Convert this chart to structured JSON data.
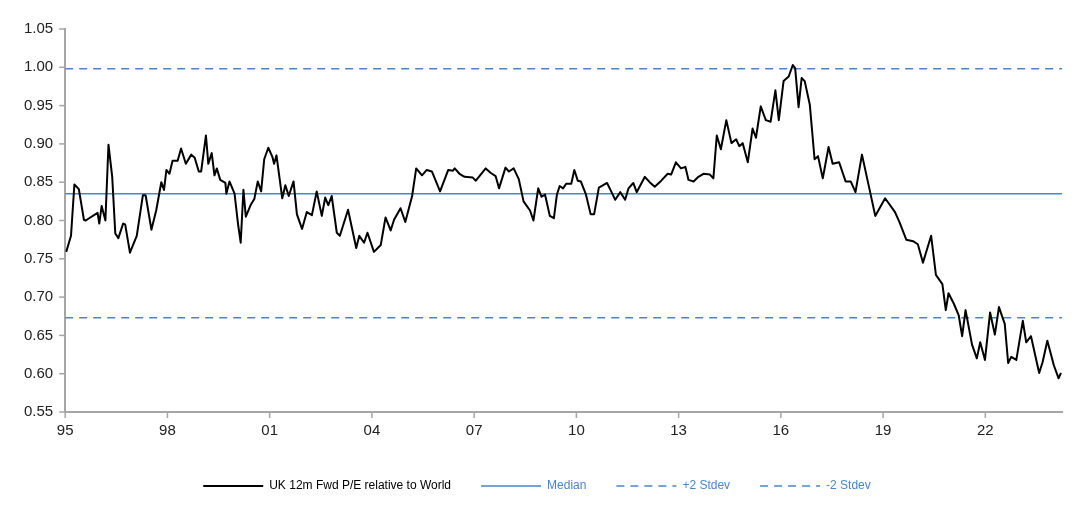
{
  "chart_data": {
    "type": "line",
    "legend": "bottom",
    "grid": false,
    "marker": "none",
    "line_style": "solid",
    "xlim": [
      1995,
      2024.25
    ],
    "xticks": [
      {
        "value": 1995,
        "label": "95"
      },
      {
        "value": 1998,
        "label": "98"
      },
      {
        "value": 2001,
        "label": "01"
      },
      {
        "value": 2004,
        "label": "04"
      },
      {
        "value": 2007,
        "label": "07"
      },
      {
        "value": 2010,
        "label": "10"
      },
      {
        "value": 2013,
        "label": "13"
      },
      {
        "value": 2016,
        "label": "16"
      },
      {
        "value": 2019,
        "label": "19"
      },
      {
        "value": 2022,
        "label": "22"
      }
    ],
    "ylim": [
      0.55,
      1.05
    ],
    "yticks": [
      0.55,
      {
        "value": 0.6,
        "label": "0.60"
      },
      0.65,
      {
        "value": 0.7,
        "label": "0.70"
      },
      0.75,
      {
        "value": 0.8,
        "label": "0.80"
      },
      0.85,
      {
        "value": 0.9,
        "label": "0.90"
      },
      0.95,
      {
        "value": 1,
        "label": "1.00"
      },
      1.05
    ],
    "series": [
      {
        "name": "UK 12m Fwd P/E relative to World",
        "color": "#000000",
        "x": [
          1995.03,
          1995.17,
          1995.27,
          1995.4,
          1995.55,
          1995.6,
          1995.95,
          1996.0,
          1996.07,
          1996.18,
          1996.27,
          1996.38,
          1996.47,
          1996.56,
          1996.7,
          1996.76,
          1996.9,
          1997.1,
          1997.28,
          1997.36,
          1997.53,
          1997.67,
          1997.82,
          1997.9,
          1997.97,
          1998.06,
          1998.15,
          1998.3,
          1998.4,
          1998.54,
          1998.7,
          1998.8,
          1998.92,
          1998.99,
          1999.13,
          1999.2,
          1999.3,
          1999.38,
          1999.45,
          1999.55,
          1999.7,
          1999.73,
          1999.82,
          1999.97,
          2000.07,
          2000.15,
          2000.23,
          2000.3,
          2000.45,
          2000.55,
          2000.65,
          2000.75,
          2000.84,
          2000.96,
          2001.08,
          2001.13,
          2001.2,
          2001.37,
          2001.46,
          2001.56,
          2001.7,
          2001.8,
          2001.95,
          2002.09,
          2002.24,
          2002.38,
          2002.53,
          2002.63,
          2002.72,
          2002.82,
          2002.97,
          2003.06,
          2003.3,
          2003.54,
          2003.63,
          2003.77,
          2003.87,
          2004.06,
          2004.26,
          2004.4,
          2004.55,
          2004.65,
          2004.84,
          2004.98,
          2005.18,
          2005.3,
          2005.47,
          2005.61,
          2005.76,
          2006.0,
          2006.24,
          2006.38,
          2006.43,
          2006.57,
          2006.72,
          2006.96,
          2007.05,
          2007.34,
          2007.49,
          2007.63,
          2007.73,
          2007.92,
          2008.02,
          2008.16,
          2008.31,
          2008.45,
          2008.64,
          2008.74,
          2008.88,
          2008.98,
          2009.08,
          2009.22,
          2009.34,
          2009.43,
          2009.51,
          2009.61,
          2009.7,
          2009.85,
          2009.94,
          2010.04,
          2010.13,
          2010.28,
          2010.42,
          2010.52,
          2010.66,
          2010.9,
          2011.0,
          2011.14,
          2011.29,
          2011.43,
          2011.53,
          2011.67,
          2011.77,
          2012.01,
          2012.15,
          2012.3,
          2012.49,
          2012.68,
          2012.78,
          2012.92,
          2013.07,
          2013.2,
          2013.29,
          2013.44,
          2013.58,
          2013.73,
          2013.92,
          2014.02,
          2014.12,
          2014.24,
          2014.4,
          2014.55,
          2014.69,
          2014.78,
          2014.88,
          2015.03,
          2015.17,
          2015.27,
          2015.41,
          2015.56,
          2015.7,
          2015.84,
          2015.94,
          2016.08,
          2016.23,
          2016.35,
          2016.42,
          2016.52,
          2016.61,
          2016.7,
          2016.85,
          2016.99,
          2017.09,
          2017.23,
          2017.4,
          2017.52,
          2017.71,
          2017.9,
          2018.05,
          2018.19,
          2018.38,
          2018.62,
          2018.77,
          2019.06,
          2019.35,
          2019.49,
          2019.68,
          2019.88,
          2020.02,
          2020.17,
          2020.41,
          2020.55,
          2020.74,
          2020.84,
          2020.92,
          2021.08,
          2021.22,
          2021.32,
          2021.42,
          2021.61,
          2021.75,
          2021.85,
          2021.99,
          2022.14,
          2022.28,
          2022.4,
          2022.57,
          2022.67,
          2022.76,
          2022.91,
          2023.1,
          2023.2,
          2023.34,
          2023.58,
          2023.68,
          2023.82,
          2024.01,
          2024.15,
          2024.22
        ],
        "values": [
          0.759,
          0.78,
          0.847,
          0.841,
          0.801,
          0.8,
          0.81,
          0.796,
          0.819,
          0.8,
          0.899,
          0.857,
          0.783,
          0.777,
          0.796,
          0.795,
          0.758,
          0.78,
          0.833,
          0.833,
          0.788,
          0.813,
          0.85,
          0.84,
          0.866,
          0.861,
          0.878,
          0.878,
          0.894,
          0.874,
          0.886,
          0.882,
          0.864,
          0.864,
          0.911,
          0.874,
          0.888,
          0.859,
          0.868,
          0.853,
          0.849,
          0.835,
          0.851,
          0.835,
          0.796,
          0.771,
          0.84,
          0.805,
          0.821,
          0.828,
          0.851,
          0.838,
          0.88,
          0.895,
          0.883,
          0.874,
          0.885,
          0.829,
          0.846,
          0.832,
          0.851,
          0.808,
          0.789,
          0.811,
          0.807,
          0.838,
          0.806,
          0.83,
          0.82,
          0.832,
          0.784,
          0.78,
          0.814,
          0.764,
          0.78,
          0.771,
          0.784,
          0.759,
          0.768,
          0.804,
          0.787,
          0.801,
          0.816,
          0.798,
          0.832,
          0.868,
          0.859,
          0.866,
          0.864,
          0.838,
          0.866,
          0.865,
          0.868,
          0.861,
          0.857,
          0.856,
          0.852,
          0.868,
          0.862,
          0.858,
          0.842,
          0.869,
          0.864,
          0.868,
          0.854,
          0.825,
          0.813,
          0.8,
          0.842,
          0.831,
          0.834,
          0.806,
          0.803,
          0.834,
          0.845,
          0.842,
          0.848,
          0.848,
          0.866,
          0.852,
          0.851,
          0.834,
          0.808,
          0.808,
          0.843,
          0.849,
          0.84,
          0.827,
          0.837,
          0.827,
          0.842,
          0.849,
          0.837,
          0.857,
          0.85,
          0.844,
          0.852,
          0.861,
          0.86,
          0.876,
          0.868,
          0.87,
          0.853,
          0.851,
          0.857,
          0.861,
          0.86,
          0.855,
          0.911,
          0.893,
          0.931,
          0.901,
          0.906,
          0.897,
          0.901,
          0.876,
          0.92,
          0.908,
          0.949,
          0.931,
          0.929,
          0.97,
          0.931,
          0.982,
          0.988,
          1.003,
          0.999,
          0.948,
          0.986,
          0.982,
          0.951,
          0.88,
          0.884,
          0.855,
          0.896,
          0.874,
          0.876,
          0.851,
          0.851,
          0.837,
          0.886,
          0.837,
          0.806,
          0.829,
          0.811,
          0.797,
          0.775,
          0.773,
          0.769,
          0.745,
          0.78,
          0.729,
          0.717,
          0.683,
          0.705,
          0.691,
          0.676,
          0.649,
          0.683,
          0.638,
          0.62,
          0.641,
          0.618,
          0.68,
          0.651,
          0.687,
          0.665,
          0.614,
          0.622,
          0.618,
          0.669,
          0.641,
          0.649,
          0.601,
          0.615,
          0.643,
          0.611,
          0.594,
          0.601
        ]
      },
      {
        "name": "Median",
        "color": "#4a86c8",
        "line_style": "solid",
        "x": [
          1995,
          2024.25
        ],
        "values": [
          0.835,
          0.835
        ]
      },
      {
        "name": "+2 Stdev",
        "color": "#4a86c8",
        "line_style": "dashed",
        "x": [
          1995,
          2024.25
        ],
        "values": [
          0.998,
          0.998
        ]
      },
      {
        "name": "-2 Stdev",
        "color": "#4a86c8",
        "line_style": "dashed",
        "x": [
          1995,
          2024.25
        ],
        "values": [
          0.673,
          0.673
        ]
      }
    ]
  }
}
